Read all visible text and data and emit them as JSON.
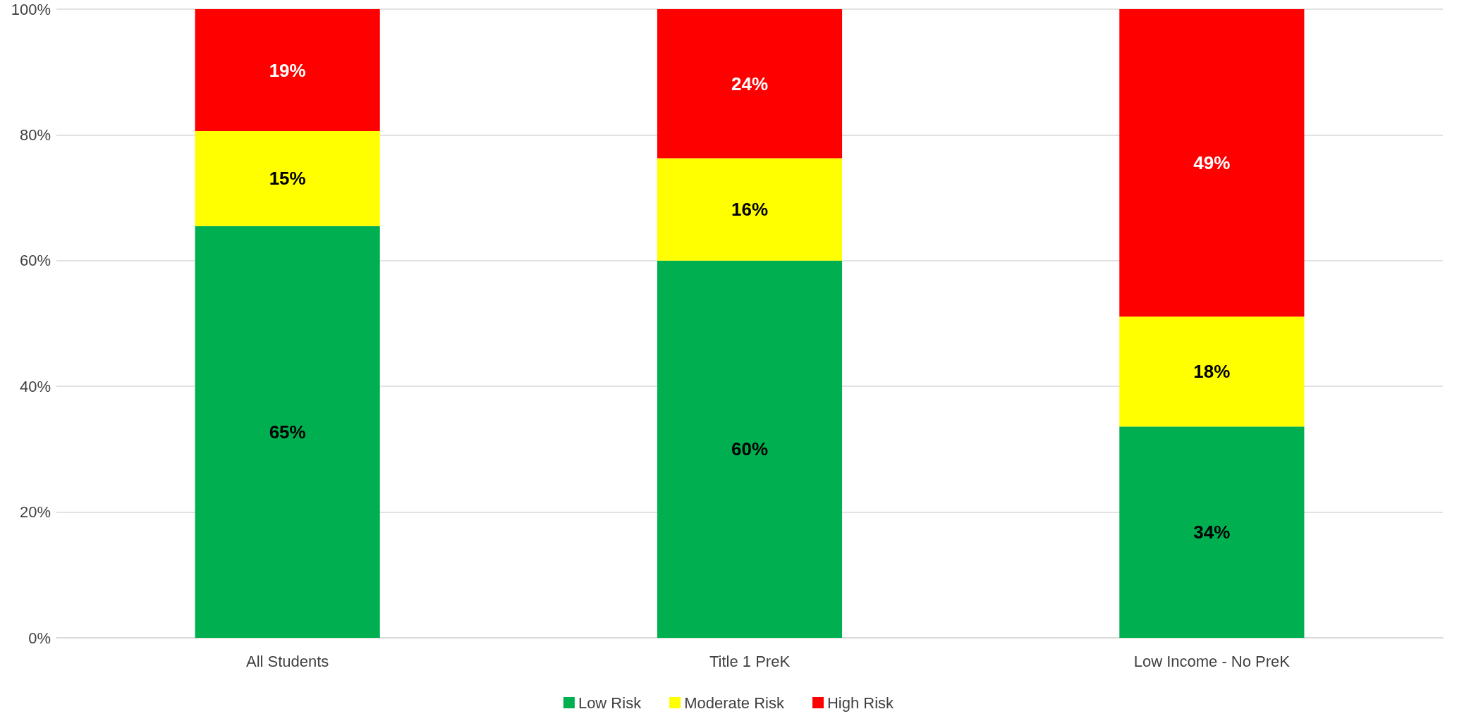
{
  "chart_data": {
    "type": "bar",
    "stacked": true,
    "categories": [
      "All Students",
      "Title 1 PreK",
      "Low Income - No PreK"
    ],
    "series": [
      {
        "name": "Low Risk",
        "color": "#00b050",
        "values": [
          65.5,
          60.0,
          33.6
        ],
        "value_labels": [
          "65%",
          "60%",
          "34%"
        ]
      },
      {
        "name": "Moderate Risk",
        "color": "#ffff00",
        "values": [
          15.1,
          16.3,
          17.5
        ],
        "value_labels": [
          "15%",
          "16%",
          "18%"
        ]
      },
      {
        "name": "High Risk",
        "color": "#ff0000",
        "values": [
          19.4,
          23.7,
          48.9
        ],
        "value_labels": [
          "19%",
          "24%",
          "49%"
        ]
      }
    ],
    "ylim": [
      0,
      100
    ],
    "yticks": [
      {
        "value": 0,
        "label": "0%"
      },
      {
        "value": 20,
        "label": "20%"
      },
      {
        "value": 40,
        "label": "40%"
      },
      {
        "value": 60,
        "label": "60%"
      },
      {
        "value": 80,
        "label": "80%"
      },
      {
        "value": 100,
        "label": "100%"
      }
    ],
    "grid": "y",
    "legend": "bottom"
  }
}
